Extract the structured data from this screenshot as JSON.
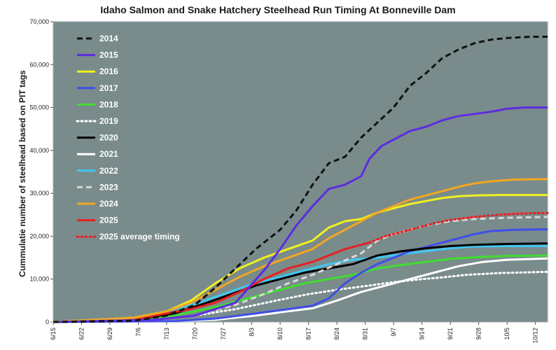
{
  "chart_data": {
    "type": "line",
    "title": "Idaho Salmon and Snake Hatchery Steelhead Run Timing At Bonneville Dam",
    "ylabel": "Cummulatie number of steelhead based on PIT tags",
    "xlabel": "",
    "ylim": [
      0,
      70000
    ],
    "yticks": [
      "0",
      "10,000",
      "20,000",
      "30,000",
      "40,000",
      "50,000",
      "60,000",
      "70,000"
    ],
    "x_range_days": [
      0,
      122
    ],
    "xticks": [
      {
        "day": 0,
        "label": "6/15"
      },
      {
        "day": 7,
        "label": "6/22"
      },
      {
        "day": 14,
        "label": "6/29"
      },
      {
        "day": 21,
        "label": "7/6"
      },
      {
        "day": 28,
        "label": "7/13"
      },
      {
        "day": 35,
        "label": "7/20"
      },
      {
        "day": 42,
        "label": "7/27"
      },
      {
        "day": 49,
        "label": "8/3"
      },
      {
        "day": 56,
        "label": "8/10"
      },
      {
        "day": 63,
        "label": "8/17"
      },
      {
        "day": 70,
        "label": "8/24"
      },
      {
        "day": 77,
        "label": "8/31"
      },
      {
        "day": 84,
        "label": "9/7"
      },
      {
        "day": 91,
        "label": "9/14"
      },
      {
        "day": 98,
        "label": "9/21"
      },
      {
        "day": 105,
        "label": "9/28"
      },
      {
        "day": 112,
        "label": "10/5"
      },
      {
        "day": 119,
        "label": "10/12"
      }
    ],
    "legend_position": "top-left",
    "grid": false,
    "background": "#7a8b8c",
    "series": [
      {
        "name": "2014",
        "color": "#111111",
        "dash": "dash",
        "points": [
          [
            0,
            0
          ],
          [
            20,
            300
          ],
          [
            28,
            1500
          ],
          [
            35,
            4000
          ],
          [
            40,
            8000
          ],
          [
            45,
            12500
          ],
          [
            50,
            17000
          ],
          [
            56,
            21500
          ],
          [
            60,
            26000
          ],
          [
            64,
            32000
          ],
          [
            68,
            37000
          ],
          [
            72,
            38500
          ],
          [
            76,
            43000
          ],
          [
            80,
            46500
          ],
          [
            84,
            50000
          ],
          [
            88,
            55000
          ],
          [
            92,
            58000
          ],
          [
            96,
            61500
          ],
          [
            100,
            63500
          ],
          [
            104,
            65000
          ],
          [
            108,
            65800
          ],
          [
            112,
            66200
          ],
          [
            118,
            66500
          ],
          [
            122,
            66500
          ]
        ]
      },
      {
        "name": "2015",
        "color": "#5b2de0",
        "dash": "solid",
        "points": [
          [
            0,
            0
          ],
          [
            25,
            500
          ],
          [
            35,
            1500
          ],
          [
            45,
            4500
          ],
          [
            52,
            12000
          ],
          [
            56,
            17000
          ],
          [
            60,
            22500
          ],
          [
            64,
            27000
          ],
          [
            68,
            31000
          ],
          [
            72,
            32000
          ],
          [
            76,
            34000
          ],
          [
            78,
            38000
          ],
          [
            81,
            41000
          ],
          [
            84,
            42500
          ],
          [
            88,
            44500
          ],
          [
            92,
            45500
          ],
          [
            96,
            47000
          ],
          [
            100,
            48000
          ],
          [
            104,
            48500
          ],
          [
            108,
            49000
          ],
          [
            112,
            49700
          ],
          [
            116,
            50000
          ],
          [
            122,
            50000
          ]
        ]
      },
      {
        "name": "2016",
        "color": "#f0f020",
        "dash": "solid",
        "points": [
          [
            0,
            0
          ],
          [
            20,
            1000
          ],
          [
            28,
            2500
          ],
          [
            34,
            5000
          ],
          [
            40,
            9000
          ],
          [
            46,
            12500
          ],
          [
            52,
            15000
          ],
          [
            58,
            17000
          ],
          [
            64,
            19000
          ],
          [
            68,
            22000
          ],
          [
            72,
            23500
          ],
          [
            76,
            24000
          ],
          [
            80,
            25500
          ],
          [
            84,
            26500
          ],
          [
            88,
            27500
          ],
          [
            92,
            28200
          ],
          [
            96,
            28900
          ],
          [
            100,
            29300
          ],
          [
            104,
            29500
          ],
          [
            110,
            29600
          ],
          [
            122,
            29600
          ]
        ]
      },
      {
        "name": "2017",
        "color": "#3f4fe8",
        "dash": "solid",
        "points": [
          [
            0,
            0
          ],
          [
            30,
            200
          ],
          [
            40,
            800
          ],
          [
            50,
            2000
          ],
          [
            58,
            3000
          ],
          [
            64,
            3800
          ],
          [
            68,
            5500
          ],
          [
            72,
            9000
          ],
          [
            76,
            11500
          ],
          [
            80,
            13500
          ],
          [
            84,
            15000
          ],
          [
            88,
            16500
          ],
          [
            92,
            17500
          ],
          [
            96,
            18500
          ],
          [
            100,
            19500
          ],
          [
            104,
            20500
          ],
          [
            108,
            21200
          ],
          [
            114,
            21500
          ],
          [
            122,
            21600
          ]
        ]
      },
      {
        "name": "2018",
        "color": "#40dd30",
        "dash": "solid",
        "points": [
          [
            0,
            0
          ],
          [
            20,
            500
          ],
          [
            30,
            1500
          ],
          [
            40,
            3500
          ],
          [
            48,
            5500
          ],
          [
            56,
            7500
          ],
          [
            62,
            9000
          ],
          [
            68,
            10000
          ],
          [
            74,
            11000
          ],
          [
            80,
            12500
          ],
          [
            86,
            13300
          ],
          [
            92,
            14000
          ],
          [
            98,
            14700
          ],
          [
            104,
            15100
          ],
          [
            112,
            15400
          ],
          [
            122,
            15500
          ]
        ]
      },
      {
        "name": "2019",
        "color": "#ffffff",
        "dash": "dot",
        "points": [
          [
            0,
            0
          ],
          [
            25,
            500
          ],
          [
            35,
            1500
          ],
          [
            45,
            3000
          ],
          [
            55,
            5000
          ],
          [
            63,
            6500
          ],
          [
            70,
            7500
          ],
          [
            78,
            8500
          ],
          [
            84,
            9300
          ],
          [
            90,
            9900
          ],
          [
            96,
            10400
          ],
          [
            102,
            11000
          ],
          [
            110,
            11400
          ],
          [
            122,
            11700
          ]
        ]
      },
      {
        "name": "2020",
        "color": "#000000",
        "dash": "solid",
        "points": [
          [
            0,
            0
          ],
          [
            20,
            500
          ],
          [
            30,
            2000
          ],
          [
            38,
            4500
          ],
          [
            44,
            6500
          ],
          [
            50,
            8500
          ],
          [
            56,
            10000
          ],
          [
            62,
            11500
          ],
          [
            68,
            12500
          ],
          [
            74,
            13500
          ],
          [
            80,
            15500
          ],
          [
            86,
            16500
          ],
          [
            92,
            17200
          ],
          [
            98,
            17700
          ],
          [
            104,
            18000
          ],
          [
            112,
            18200
          ],
          [
            122,
            18300
          ]
        ]
      },
      {
        "name": "2021",
        "color": "#ffffff",
        "dash": "solid",
        "points": [
          [
            0,
            0
          ],
          [
            30,
            200
          ],
          [
            40,
            500
          ],
          [
            50,
            1500
          ],
          [
            58,
            2500
          ],
          [
            64,
            3200
          ],
          [
            70,
            5000
          ],
          [
            76,
            7000
          ],
          [
            82,
            8500
          ],
          [
            88,
            10000
          ],
          [
            94,
            11500
          ],
          [
            100,
            13000
          ],
          [
            106,
            14000
          ],
          [
            112,
            14500
          ],
          [
            122,
            14800
          ]
        ]
      },
      {
        "name": "2022",
        "color": "#40c8f0",
        "dash": "solid",
        "points": [
          [
            0,
            0
          ],
          [
            20,
            1000
          ],
          [
            28,
            2500
          ],
          [
            36,
            4500
          ],
          [
            42,
            6500
          ],
          [
            48,
            8500
          ],
          [
            56,
            10500
          ],
          [
            62,
            12000
          ],
          [
            68,
            13500
          ],
          [
            74,
            14500
          ],
          [
            80,
            15000
          ],
          [
            86,
            15800
          ],
          [
            92,
            16500
          ],
          [
            98,
            17200
          ],
          [
            104,
            17600
          ],
          [
            112,
            17700
          ],
          [
            122,
            17700
          ]
        ]
      },
      {
        "name": "2023",
        "color": "#d8d8d8",
        "dash": "dash",
        "points": [
          [
            0,
            0
          ],
          [
            25,
            500
          ],
          [
            35,
            1500
          ],
          [
            45,
            4000
          ],
          [
            52,
            6500
          ],
          [
            58,
            9000
          ],
          [
            64,
            11000
          ],
          [
            70,
            13500
          ],
          [
            76,
            16000
          ],
          [
            80,
            19000
          ],
          [
            84,
            20500
          ],
          [
            88,
            21500
          ],
          [
            92,
            22500
          ],
          [
            98,
            23500
          ],
          [
            104,
            24000
          ],
          [
            112,
            24300
          ],
          [
            122,
            24500
          ]
        ]
      },
      {
        "name": "2024",
        "color": "#f0a820",
        "dash": "solid",
        "points": [
          [
            0,
            0
          ],
          [
            20,
            1000
          ],
          [
            28,
            2500
          ],
          [
            34,
            4500
          ],
          [
            40,
            7500
          ],
          [
            46,
            10500
          ],
          [
            52,
            13000
          ],
          [
            58,
            15000
          ],
          [
            64,
            17000
          ],
          [
            68,
            19500
          ],
          [
            72,
            21500
          ],
          [
            76,
            23500
          ],
          [
            80,
            25500
          ],
          [
            84,
            27000
          ],
          [
            88,
            28500
          ],
          [
            92,
            29500
          ],
          [
            96,
            30500
          ],
          [
            100,
            31500
          ],
          [
            104,
            32300
          ],
          [
            108,
            32800
          ],
          [
            114,
            33200
          ],
          [
            122,
            33300
          ]
        ]
      },
      {
        "name": "2025",
        "color": "#e82020",
        "dash": "solid",
        "points": [
          [
            0,
            0
          ],
          [
            20,
            500
          ],
          [
            28,
            2000
          ],
          [
            34,
            3000
          ],
          [
            40,
            4500
          ],
          [
            46,
            7000
          ],
          [
            52,
            10000
          ],
          [
            58,
            12500
          ],
          [
            64,
            14000
          ],
          [
            68,
            15500
          ],
          [
            72,
            17000
          ],
          [
            76,
            18000
          ],
          [
            78,
            18500
          ]
        ]
      },
      {
        "name": "2025 average timing",
        "color": "#e82020",
        "dash": "dot",
        "points": [
          [
            78,
            18500
          ],
          [
            82,
            20000
          ],
          [
            86,
            21000
          ],
          [
            90,
            22000
          ],
          [
            94,
            23000
          ],
          [
            98,
            23800
          ],
          [
            104,
            24500
          ],
          [
            110,
            25000
          ],
          [
            116,
            25300
          ],
          [
            122,
            25400
          ]
        ]
      }
    ]
  }
}
